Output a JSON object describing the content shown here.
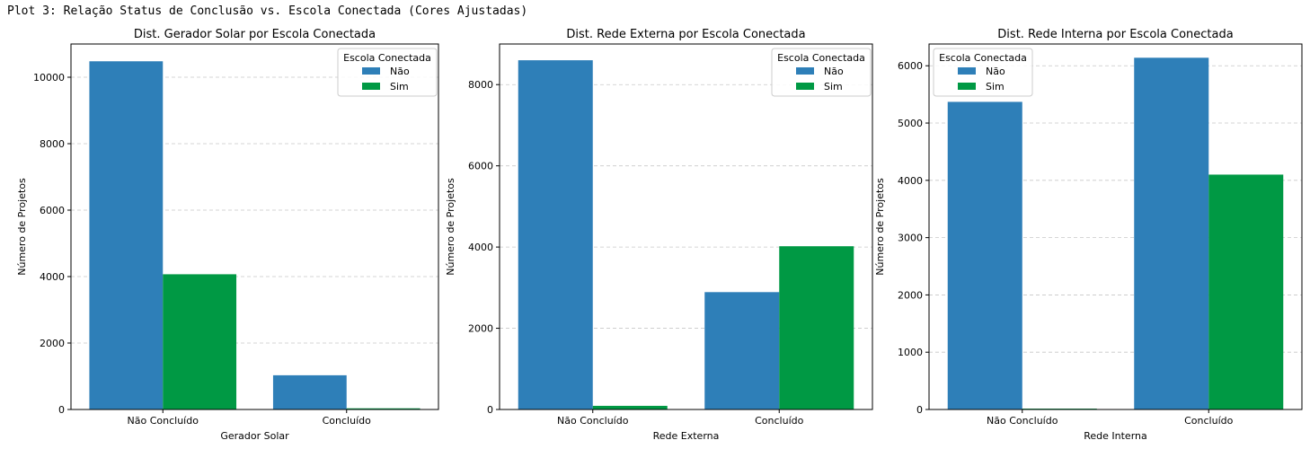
{
  "header": {
    "text": "Plot 3: Relação Status de Conclusão vs. Escola Conectada (Cores Ajustadas)"
  },
  "colors": {
    "nao": "#2e7fb8",
    "sim": "#009944",
    "grid": "#c8c8c8",
    "axis": "#000000"
  },
  "chart_data": [
    {
      "type": "bar",
      "title": "Dist. Gerador Solar por Escola Conectada",
      "xlabel": "Gerador Solar",
      "ylabel": "Número de Projetos",
      "categories": [
        "Não Concluído",
        "Concluído"
      ],
      "series": [
        {
          "name": "Não",
          "values": [
            10480,
            1030
          ]
        },
        {
          "name": "Sim",
          "values": [
            4070,
            35
          ]
        }
      ],
      "ylim": [
        0,
        11000
      ],
      "yticks": [
        0,
        2000,
        4000,
        6000,
        8000,
        10000
      ],
      "grid": "y",
      "legend": {
        "title": "Escola Conectada",
        "position": "top-right"
      }
    },
    {
      "type": "bar",
      "title": "Dist. Rede Externa por Escola Conectada",
      "xlabel": "Rede Externa",
      "ylabel": "Número de Projetos",
      "categories": [
        "Não Concluído",
        "Concluído"
      ],
      "series": [
        {
          "name": "Não",
          "values": [
            8600,
            2890
          ]
        },
        {
          "name": "Sim",
          "values": [
            90,
            4020
          ]
        }
      ],
      "ylim": [
        0,
        9000
      ],
      "yticks": [
        0,
        2000,
        4000,
        6000,
        8000
      ],
      "grid": "y",
      "legend": {
        "title": "Escola Conectada",
        "position": "top-right"
      }
    },
    {
      "type": "bar",
      "title": "Dist. Rede Interna por Escola Conectada",
      "xlabel": "Rede Interna",
      "ylabel": "Número de Projetos",
      "categories": [
        "Não Concluído",
        "Concluído"
      ],
      "series": [
        {
          "name": "Não",
          "values": [
            5370,
            6140
          ]
        },
        {
          "name": "Sim",
          "values": [
            15,
            4100
          ]
        }
      ],
      "ylim": [
        0,
        6380
      ],
      "yticks": [
        0,
        1000,
        2000,
        3000,
        4000,
        5000,
        6000
      ],
      "grid": "y",
      "legend": {
        "title": "Escola Conectada",
        "position": "top-left"
      }
    }
  ]
}
